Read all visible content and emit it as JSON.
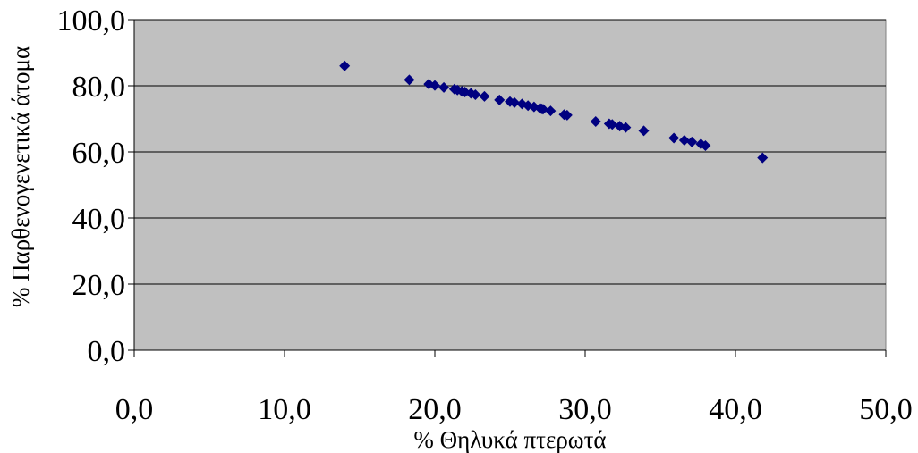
{
  "chart_data": {
    "type": "scatter",
    "title": "",
    "xlabel": "% Θηλυκά πτερωτά",
    "ylabel": "% Παρθενογενετικά άτομα",
    "xlim": [
      0,
      50
    ],
    "ylim": [
      0,
      100
    ],
    "x_ticks": [
      "0,0",
      "10,0",
      "20,0",
      "30,0",
      "40,0",
      "50,0"
    ],
    "y_ticks": [
      "0,0",
      "20,0",
      "40,0",
      "60,0",
      "80,0",
      "100,0"
    ],
    "grid": "horizontal",
    "legend": "none",
    "plot_background": "#c0c0c0",
    "marker_color": "#000080",
    "marker": "diamond",
    "series": [
      {
        "x": [
          14.0,
          18.3,
          19.6,
          20.0,
          20.6,
          21.3,
          21.5,
          21.8,
          22.0,
          22.4,
          22.7,
          23.3,
          24.3,
          25.0,
          25.3,
          25.8,
          26.2,
          26.6,
          27.0,
          27.1,
          27.2,
          27.7,
          28.6,
          28.8,
          30.7,
          31.6,
          31.8,
          32.3,
          32.7,
          33.9,
          35.9,
          36.6,
          37.1,
          37.7,
          38.0,
          41.8
        ],
        "y": [
          86.0,
          81.8,
          80.5,
          80.1,
          79.5,
          79.0,
          78.7,
          78.3,
          78.1,
          77.7,
          77.3,
          76.8,
          75.7,
          75.2,
          74.9,
          74.5,
          74.0,
          73.6,
          73.2,
          73.0,
          72.9,
          72.4,
          71.3,
          71.1,
          69.2,
          68.5,
          68.3,
          67.8,
          67.4,
          66.4,
          64.2,
          63.5,
          63.0,
          62.4,
          61.9,
          58.2
        ]
      }
    ]
  }
}
